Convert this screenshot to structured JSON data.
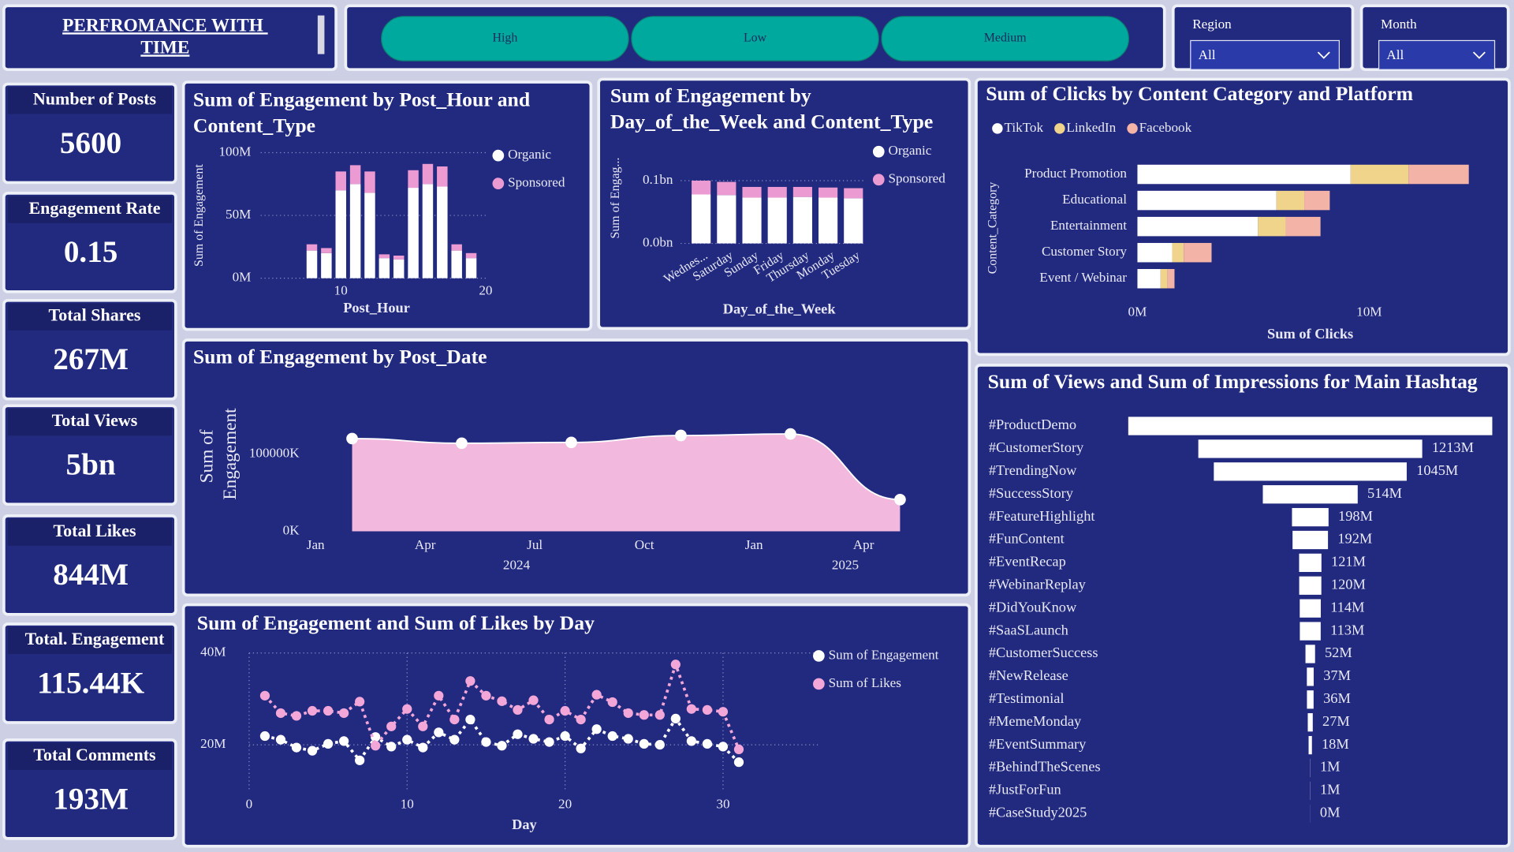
{
  "header": {
    "title": "PERFROMANCE WITH TIME"
  },
  "buttons": [
    "High",
    "Low",
    "Medium"
  ],
  "slicers": [
    {
      "label": "Region",
      "value": "All"
    },
    {
      "label": "Month",
      "value": "All"
    }
  ],
  "kpis": [
    {
      "label": "Number of Posts",
      "value": "5600"
    },
    {
      "label": "Engagement Rate",
      "value": "0.15"
    },
    {
      "label": "Total Shares",
      "value": "267M"
    },
    {
      "label": "Total Views",
      "value": "5bn"
    },
    {
      "label": "Total Likes",
      "value": "844M"
    },
    {
      "label": "Total. Engagement",
      "value": "115.44K"
    },
    {
      "label": "Total Comments",
      "value": "193M"
    }
  ],
  "chart_data": [
    {
      "type": "bar",
      "title": "Sum of Engagement by Post_Hour and Content_Type",
      "x_label": "Post_Hour",
      "y_label": "Sum of Engagement",
      "x": [
        8,
        9,
        10,
        11,
        12,
        13,
        14,
        15,
        16,
        17,
        18,
        19
      ],
      "series": [
        {
          "name": "Organic",
          "color": "#ffffff",
          "values": [
            22000000,
            20000000,
            70000000,
            75000000,
            68000000,
            16000000,
            15000000,
            72000000,
            75000000,
            73000000,
            22000000,
            16000000
          ]
        },
        {
          "name": "Sponsored",
          "color": "#ec9ad2",
          "values": [
            5000000,
            4000000,
            15000000,
            15000000,
            17000000,
            3000000,
            3000000,
            14000000,
            16000000,
            16000000,
            5000000,
            4000000
          ]
        }
      ],
      "xlim": [
        7,
        20.2
      ],
      "xticks": [
        10,
        20
      ],
      "ylim": [
        0,
        100000000
      ],
      "yticks": [
        {
          "value": 0,
          "label": "0M"
        },
        {
          "value": 50000000,
          "label": "50M"
        },
        {
          "value": 100000000,
          "label": "100M"
        }
      ],
      "grid": true,
      "legend": "right",
      "stacked": true
    },
    {
      "type": "bar",
      "title": "Sum of Engagement by Day_of_the_Week and Content_Type",
      "x_label": "Day_of_the_Week",
      "y_label": "Sum of Engag...",
      "categories": [
        "Wednes...",
        "Saturday",
        "Sunday",
        "Friday",
        "Thursday",
        "Monday",
        "Tuesday"
      ],
      "series": [
        {
          "name": "Organic",
          "color": "#ffffff",
          "values": [
            78000000,
            77000000,
            73000000,
            73000000,
            74000000,
            73000000,
            72000000
          ]
        },
        {
          "name": "Sponsored",
          "color": "#ec9ad2",
          "values": [
            22000000,
            21000000,
            17000000,
            17000000,
            16000000,
            16000000,
            16000000
          ]
        }
      ],
      "ylim": [
        0,
        150000000
      ],
      "yticks": [
        {
          "value": 0,
          "label": "0.0bn"
        },
        {
          "value": 100000000,
          "label": "0.1bn"
        }
      ],
      "grid": true,
      "legend": "right",
      "stacked": true
    },
    {
      "type": "barh",
      "title": "Sum of Clicks by Content Category and Platform",
      "x_label": "Sum of Clicks",
      "y_label": "Content_Category",
      "categories": [
        "Product Promotion",
        "Educational",
        "Entertainment",
        "Customer Story",
        "Event / Webinar"
      ],
      "series": [
        {
          "name": "TikTok",
          "color": "#ffffff",
          "values": [
            9200000,
            6000000,
            5200000,
            1500000,
            1000000
          ]
        },
        {
          "name": "LinkedIn",
          "color": "#f0d48c",
          "values": [
            2500000,
            1200000,
            1200000,
            500000,
            300000
          ]
        },
        {
          "name": "Facebook",
          "color": "#f3b3a6",
          "values": [
            2600000,
            1100000,
            1500000,
            1200000,
            300000
          ]
        }
      ],
      "xlim": [
        0,
        15000000
      ],
      "xticks": [
        {
          "value": 0,
          "label": "0M"
        },
        {
          "value": 10000000,
          "label": "10M"
        }
      ],
      "legend": "top",
      "stacked": true
    },
    {
      "type": "area",
      "title": "Sum of Engagement by Post_Date",
      "y_label": "Sum of Engagement",
      "x": [
        "2024-02",
        "2024-05",
        "2024-08",
        "2024-11",
        "2025-02",
        "2025-05"
      ],
      "values": [
        120000000,
        114000000,
        115000000,
        124000000,
        126000000,
        41000000
      ],
      "color": "#f3b8dd",
      "xlim": [
        "2023-12",
        "2025-06"
      ],
      "xticks": [
        {
          "value": "2024-01",
          "label": "Jan"
        },
        {
          "value": "2024-04",
          "label": "Apr"
        },
        {
          "value": "2024-07",
          "label": "Jul"
        },
        {
          "value": "2024-10",
          "label": "Oct"
        },
        {
          "value": "2025-01",
          "label": "Jan"
        },
        {
          "value": "2025-04",
          "label": "Apr"
        }
      ],
      "xgroups": [
        "2024",
        "2025"
      ],
      "ylim": [
        0,
        150000000
      ],
      "yticks": [
        {
          "value": 0,
          "label": "0K"
        },
        {
          "value": 100000000,
          "label": "100000K"
        }
      ]
    },
    {
      "type": "line",
      "title": "Sum of Engagement and Sum of Likes by Day",
      "x_label": "Day",
      "x": [
        1,
        2,
        3,
        4,
        5,
        6,
        7,
        8,
        9,
        10,
        11,
        12,
        13,
        14,
        15,
        16,
        17,
        18,
        19,
        20,
        21,
        22,
        23,
        24,
        25,
        26,
        27,
        28,
        29,
        30,
        31
      ],
      "series": [
        {
          "name": "Sum of Engagement",
          "color": "#ffffff",
          "values": [
            21900000,
            21100000,
            19400000,
            18700000,
            20200000,
            20800000,
            16600000,
            21700000,
            19600000,
            21100000,
            19400000,
            22700000,
            21100000,
            25500000,
            20600000,
            19800000,
            22300000,
            21300000,
            20600000,
            21900000,
            19200000,
            23400000,
            21900000,
            21300000,
            20200000,
            20000000,
            25700000,
            20800000,
            20200000,
            19600000,
            16200000
          ]
        },
        {
          "name": "Sum of Likes",
          "color": "#f3a6d8",
          "values": [
            30700000,
            26900000,
            26300000,
            27400000,
            27400000,
            26900000,
            29400000,
            19800000,
            24000000,
            27800000,
            24000000,
            30700000,
            25500000,
            33900000,
            30700000,
            29500000,
            27600000,
            29700000,
            25500000,
            27400000,
            25500000,
            30900000,
            29300000,
            26900000,
            26500000,
            26500000,
            37500000,
            27800000,
            27600000,
            27200000,
            19000000
          ]
        }
      ],
      "xlim": [
        0,
        36
      ],
      "xticks": [
        0,
        10,
        20,
        30
      ],
      "ylim": [
        10000000,
        40000000
      ],
      "yticks": [
        {
          "value": 20000000,
          "label": "20M"
        },
        {
          "value": 40000000,
          "label": "40M"
        }
      ],
      "grid": true,
      "legend": "right"
    },
    {
      "type": "funnel",
      "title": "Sum of Views and Sum of Impressions for Main Hashtag",
      "categories": [
        "#ProductDemo",
        "#CustomerStory",
        "#TrendingNow",
        "#SuccessStory",
        "#FeatureHighlight",
        "#FunContent",
        "#EventRecap",
        "#WebinarReplay",
        "#DidYouKnow",
        "#SaaSLaunch",
        "#CustomerSuccess",
        "#NewRelease",
        "#Testimonial",
        "#MemeMonday",
        "#EventSummary",
        "#BehindTheScenes",
        "#JustForFun",
        "#CaseStudy2025"
      ],
      "values": [
        1972000000,
        1213000000,
        1045000000,
        514000000,
        198000000,
        192000000,
        121000000,
        120000000,
        114000000,
        113000000,
        52000000,
        37000000,
        36000000,
        27000000,
        18000000,
        1000000,
        1000000,
        400000
      ],
      "value_labels": [
        null,
        "1213M",
        "1045M",
        "514M",
        "198M",
        "192M",
        "121M",
        "120M",
        "114M",
        "113M",
        "52M",
        "37M",
        "36M",
        "27M",
        "18M",
        "1M",
        "1M",
        "0M"
      ],
      "color": "#ffffff"
    }
  ]
}
